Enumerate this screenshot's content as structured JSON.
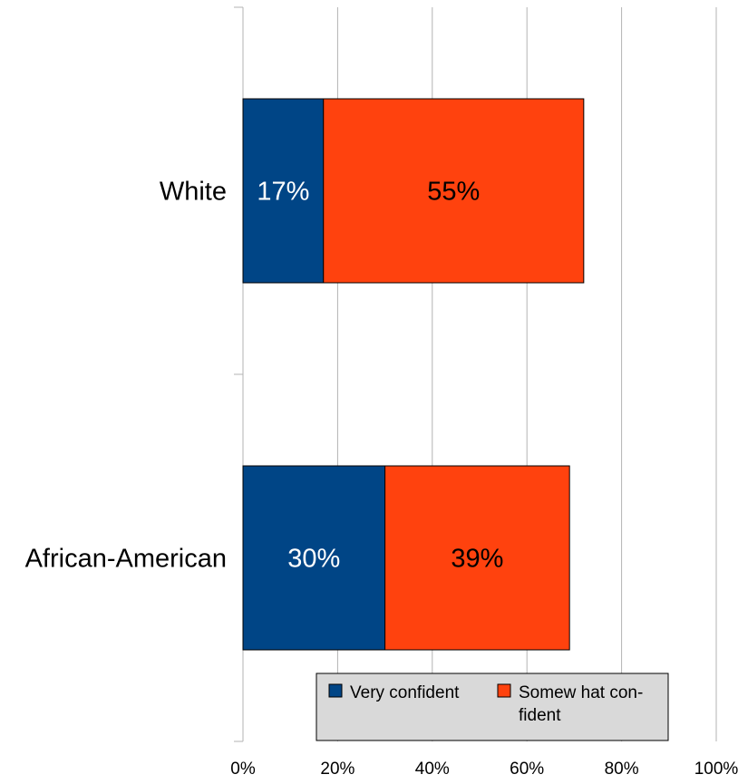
{
  "chart_data": {
    "type": "bar",
    "orientation": "horizontal",
    "stacked": true,
    "categories": [
      "White",
      "African-American"
    ],
    "series": [
      {
        "name": "Very confident",
        "values": [
          17,
          30
        ],
        "labels": [
          "17%",
          "30%"
        ],
        "color": "#004586",
        "label_color": "#ffffff"
      },
      {
        "name": "Somewhat confident",
        "values": [
          55,
          39
        ],
        "labels": [
          "55%",
          "39%"
        ],
        "color": "#ff420e",
        "label_color": "#000000"
      }
    ],
    "x_ticks": [
      "0%",
      "20%",
      "40%",
      "60%",
      "80%",
      "100%"
    ],
    "xlim": [
      0,
      100
    ],
    "grid": true,
    "legend": {
      "placement": "bottom-center",
      "entries": [
        "Very confident",
        "Somew hat con-fident"
      ],
      "entry_lines": [
        [
          "Very confident"
        ],
        [
          "Somew hat con-",
          "fident"
        ]
      ],
      "background": "#d9d9d9"
    }
  }
}
